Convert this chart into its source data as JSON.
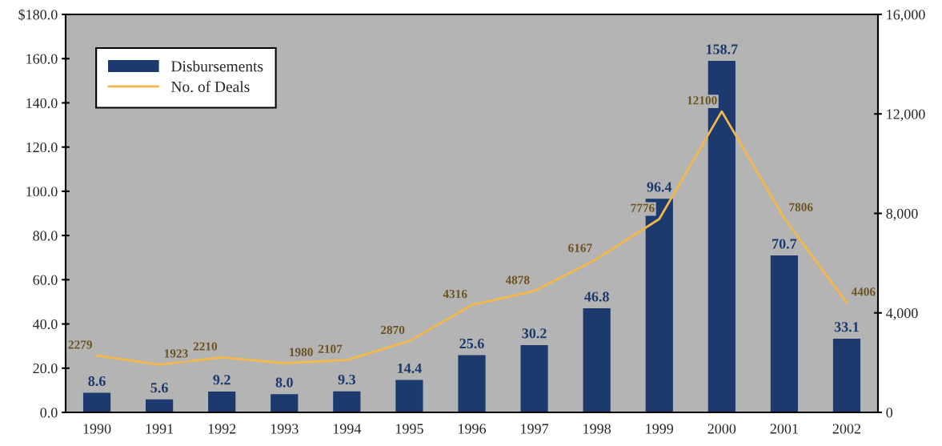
{
  "chart_data": {
    "type": "bar",
    "categories": [
      "1990",
      "1991",
      "1992",
      "1993",
      "1994",
      "1995",
      "1996",
      "1997",
      "1998",
      "1999",
      "2000",
      "2001",
      "2002"
    ],
    "series": [
      {
        "name": "Disbursements",
        "color": "#1c3a6e",
        "values": [
          8.6,
          5.6,
          9.2,
          8.0,
          9.3,
          14.4,
          25.6,
          30.2,
          46.8,
          96.4,
          158.7,
          70.7,
          33.1
        ],
        "value_labels": [
          "8.6",
          "5.6",
          "9.2",
          "8.0",
          "9.3",
          "14.4",
          "25.6",
          "30.2",
          "46.8",
          "96.4",
          "158.7",
          "70.7",
          "33.1"
        ]
      },
      {
        "name": "No. of Deals",
        "type": "line",
        "axis": "y2",
        "color": "#f2b84b",
        "values": [
          2279,
          1923,
          2210,
          1980,
          2107,
          2870,
          4316,
          4878,
          6167,
          7776,
          12100,
          7806,
          4406
        ],
        "value_labels": [
          "2279",
          "1923",
          "2210",
          "1980",
          "2107",
          "2870",
          "4316",
          "4878",
          "6167",
          "7776",
          "12100",
          "7806",
          "4406"
        ]
      }
    ],
    "ylim": [
      0,
      180
    ],
    "yticks": [
      {
        "value": 0,
        "label": "0.0"
      },
      {
        "value": 20,
        "label": "20.0"
      },
      {
        "value": 40,
        "label": "40.0"
      },
      {
        "value": 60,
        "label": "60.0"
      },
      {
        "value": 80,
        "label": "80.0"
      },
      {
        "value": 100,
        "label": "100.0"
      },
      {
        "value": 120,
        "label": "120.0"
      },
      {
        "value": 140,
        "label": "140.0"
      },
      {
        "value": 160,
        "label": "160.0"
      },
      {
        "value": 180,
        "label": "$180.0"
      }
    ],
    "y2lim": [
      0,
      16000
    ],
    "y2ticks": [
      0,
      {
        "value": 4000,
        "label": "4,000"
      },
      {
        "value": 8000,
        "label": "8,000"
      },
      {
        "value": 12000,
        "label": "12,000"
      },
      {
        "value": 16000,
        "label": "16,000"
      }
    ],
    "legend": "top left"
  }
}
